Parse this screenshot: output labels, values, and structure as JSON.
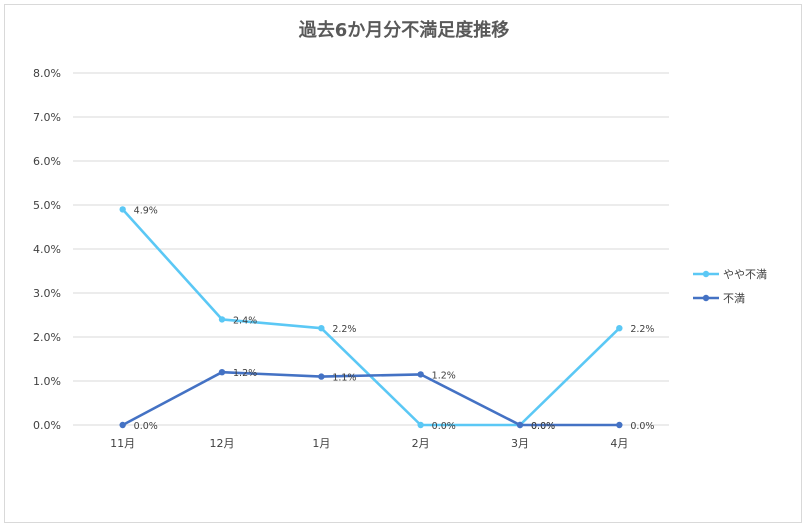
{
  "chart_data": {
    "type": "line",
    "title": "過去6か月分不満足度推移",
    "categories": [
      "11月",
      "12月",
      "1月",
      "2月",
      "3月",
      "4月"
    ],
    "ylim": [
      0,
      8
    ],
    "y_ticks": [
      "0.0%",
      "1.0%",
      "2.0%",
      "3.0%",
      "4.0%",
      "5.0%",
      "6.0%",
      "7.0%",
      "8.0%"
    ],
    "grid": true,
    "legend_position": "right",
    "series": [
      {
        "name": "やや不満",
        "color": "#5bc8f5",
        "values": [
          4.9,
          2.4,
          2.2,
          0.0,
          0.0,
          2.2
        ],
        "labels": [
          "4.9%",
          "2.4%",
          "2.2%",
          "0.0%",
          "0.0%",
          "2.2%"
        ]
      },
      {
        "name": "不満",
        "color": "#4472c4",
        "values": [
          0.0,
          1.2,
          1.1,
          1.15,
          0.0,
          0.0
        ],
        "labels": [
          "0.0%",
          "1.2%",
          "1.1%",
          "1.2%",
          "0.0%",
          "0.0%"
        ]
      }
    ]
  }
}
